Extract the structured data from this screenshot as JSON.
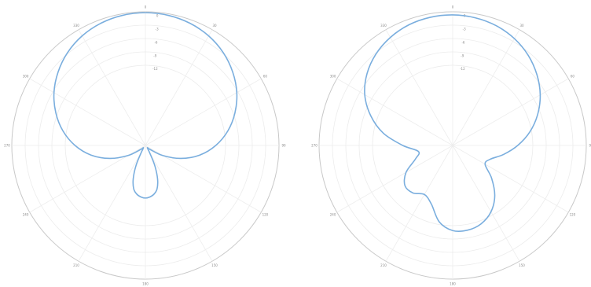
{
  "chart_data": [
    {
      "type": "line",
      "title": "",
      "projection": "polar",
      "angle_unit": "degrees",
      "theta_zero": "top",
      "theta_direction": "clockwise",
      "angle_ticks": [
        "0",
        "30",
        "60",
        "90",
        "120",
        "150",
        "180",
        "210",
        "240",
        "270",
        "300",
        "330"
      ],
      "radial_ticks": [
        "0",
        "-3",
        "-6",
        "-9",
        "-12"
      ],
      "rlim": [
        -30,
        0
      ],
      "grid": true,
      "series": [
        {
          "color": "#7aaede",
          "theta": [
            0,
            10,
            20,
            30,
            40,
            50,
            60,
            70,
            80,
            90,
            100,
            110,
            120,
            130,
            140,
            150,
            155,
            160,
            165,
            170,
            175,
            180,
            185,
            190,
            195,
            200,
            205,
            210,
            220,
            230,
            240,
            250,
            260,
            270,
            280,
            290,
            300,
            310,
            320,
            330,
            340,
            350
          ],
          "r": [
            -0.2,
            -0.35,
            -0.8,
            -1.6,
            -2.8,
            -4.4,
            -6.3,
            -8.6,
            -11.2,
            -14.2,
            -17.6,
            -21.5,
            -25.5,
            -28.6,
            -29.3,
            -28.0,
            -25.0,
            -22.0,
            -19.9,
            -18.9,
            -18.4,
            -18.2,
            -18.4,
            -18.9,
            -19.9,
            -22.0,
            -25.0,
            -28.0,
            -29.3,
            -28.6,
            -25.5,
            -21.5,
            -17.6,
            -14.2,
            -11.2,
            -8.6,
            -6.3,
            -4.4,
            -2.8,
            -1.6,
            -0.8,
            -0.35
          ]
        }
      ]
    },
    {
      "type": "line",
      "title": "",
      "projection": "polar",
      "angle_unit": "degrees",
      "theta_zero": "top",
      "theta_direction": "clockwise",
      "angle_ticks": [
        "0",
        "30",
        "60",
        "90",
        "120",
        "150",
        "180",
        "210",
        "240",
        "270",
        "300",
        "330"
      ],
      "radial_ticks": [
        "0",
        "-3",
        "-6",
        "-9",
        "-12"
      ],
      "rlim": [
        -30,
        0
      ],
      "grid": true,
      "series": [
        {
          "color": "#7aaede",
          "theta": [
            0,
            10,
            20,
            30,
            40,
            50,
            60,
            70,
            80,
            90,
            100,
            110,
            120,
            130,
            140,
            150,
            160,
            170,
            180,
            190,
            200,
            210,
            220,
            230,
            240,
            250,
            260,
            270,
            280,
            290,
            300,
            310,
            320,
            330,
            340,
            350
          ],
          "r": [
            -0.7,
            -0.9,
            -1.4,
            -2.3,
            -3.6,
            -5.3,
            -7.3,
            -9.7,
            -12.4,
            -15.4,
            -18.4,
            -21.0,
            -21.6,
            -18.6,
            -15.3,
            -12.8,
            -11.3,
            -10.7,
            -10.9,
            -12.6,
            -16.0,
            -17.3,
            -16.1,
            -16.0,
            -17.9,
            -21.1,
            -22.2,
            -18.8,
            -14.2,
            -10.4,
            -7.2,
            -4.9,
            -3.2,
            -2.0,
            -1.2,
            -0.8
          ]
        }
      ]
    }
  ]
}
